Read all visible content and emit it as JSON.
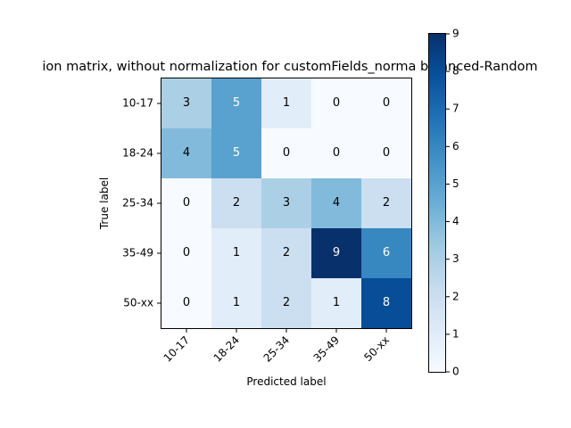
{
  "chart_data": {
    "type": "heatmap",
    "title": "ion matrix, without normalization for customFields_norma balanced-Random",
    "xlabel": "Predicted label",
    "ylabel": "True label",
    "x_categories": [
      "10-17",
      "18-24",
      "25-34",
      "35-49",
      "50-xx"
    ],
    "y_categories": [
      "10-17",
      "18-24",
      "25-34",
      "35-49",
      "50-xx"
    ],
    "values": [
      [
        3,
        5,
        1,
        0,
        0
      ],
      [
        4,
        5,
        0,
        0,
        0
      ],
      [
        0,
        2,
        3,
        4,
        2
      ],
      [
        0,
        1,
        2,
        9,
        6
      ],
      [
        0,
        1,
        2,
        1,
        8
      ]
    ],
    "colormap": "Blues",
    "color_range": [
      0,
      9
    ],
    "colorbar_ticks": [
      0,
      1,
      2,
      3,
      4,
      5,
      6,
      7,
      8,
      9
    ],
    "grid": false
  }
}
